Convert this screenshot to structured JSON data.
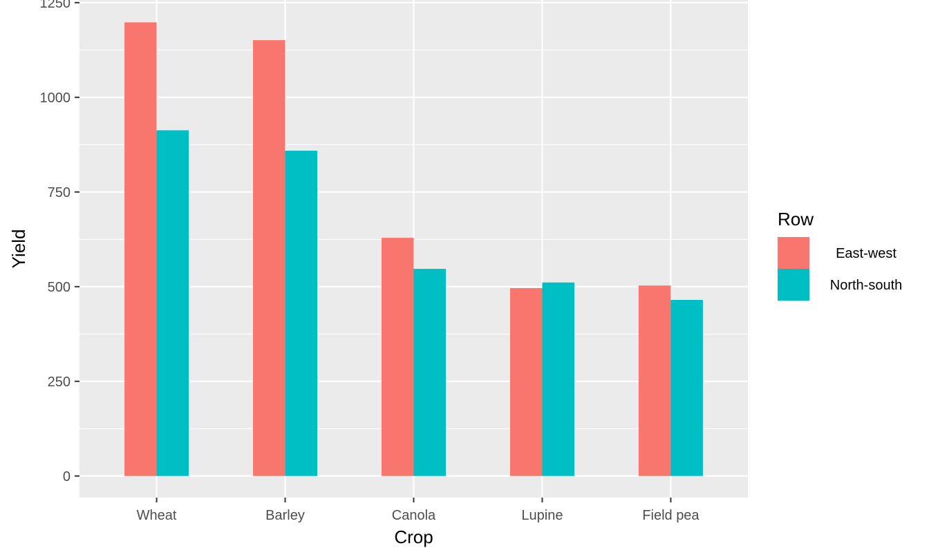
{
  "chart_data": {
    "type": "bar",
    "xlabel": "Crop",
    "ylabel": "Yield",
    "categories": [
      "Wheat",
      "Barley",
      "Canola",
      "Lupine",
      "Field pea"
    ],
    "series": [
      {
        "name": "East-west",
        "values": [
          1198,
          1151,
          629,
          496,
          503
        ],
        "color": "#F8766D"
      },
      {
        "name": "North-south",
        "values": [
          913,
          859,
          547,
          511,
          465
        ],
        "color": "#00BFC4"
      }
    ],
    "ylim": [
      -57,
      1257
    ],
    "yticks": [
      0,
      250,
      500,
      750,
      1000,
      1250
    ],
    "legend_title": "Row",
    "legend_position": "right",
    "grid": true,
    "panel_background": "#EBEBEB"
  }
}
